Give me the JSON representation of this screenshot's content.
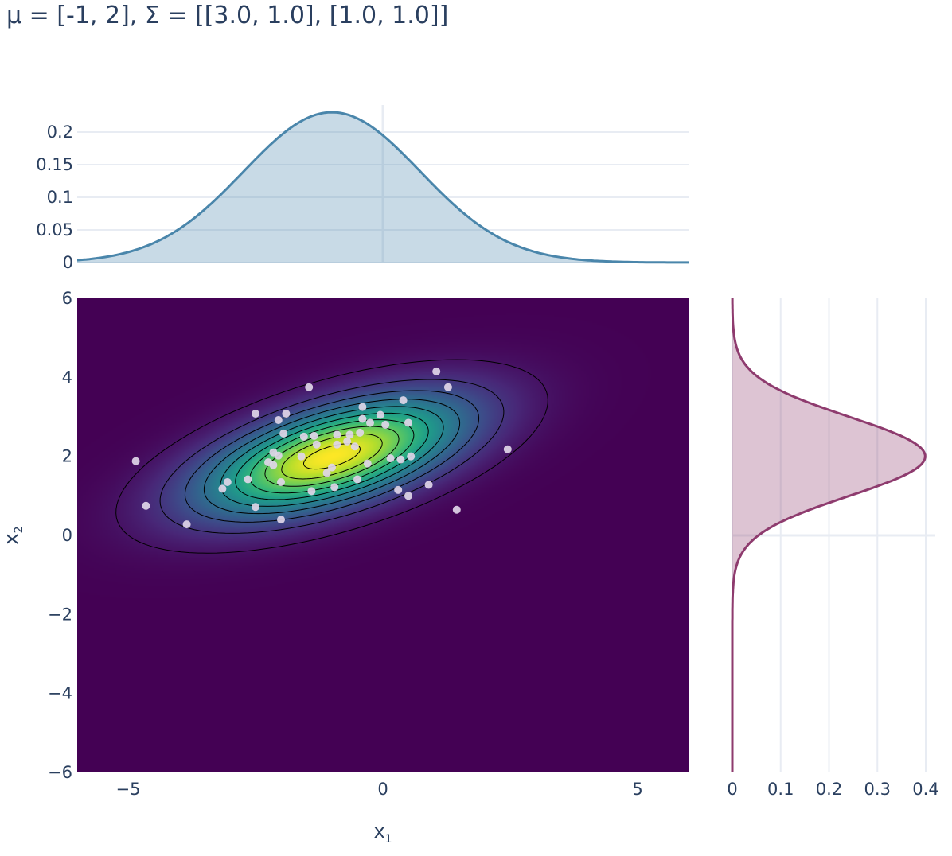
{
  "title": "μ = [-1, 2], Σ = [[3.0, 1.0], [1.0, 1.0]]",
  "colors": {
    "top_marginal": "#4a86ab",
    "right_marginal": "#8e3b6e",
    "scatter": "#e0d6e8",
    "contour": "#000000",
    "grid": "#e8ecf3",
    "text": "#2a3f5f"
  },
  "chart_data": [
    {
      "panel": "joint",
      "type": "heatmap",
      "mean": [
        -1,
        2
      ],
      "covariance": [
        [
          3.0,
          1.0
        ],
        [
          1.0,
          1.0
        ]
      ],
      "colorscale": "Viridis",
      "xlim": [
        -6,
        6
      ],
      "ylim": [
        -6,
        6
      ],
      "xlabel": "x₁",
      "ylabel": "x₂",
      "x_ticks": [
        -5,
        0,
        5
      ],
      "x_tick_labels": [
        "−5",
        "0",
        "5"
      ],
      "y_ticks": [
        -6,
        -4,
        -2,
        0,
        2,
        4,
        6
      ],
      "y_tick_labels": [
        "−6",
        "−4",
        "−2",
        "0",
        "2",
        "4",
        "6"
      ],
      "contour_levels": 10,
      "scatter_points": [
        [
          1.05,
          4.15
        ],
        [
          1.28,
          3.75
        ],
        [
          -1.45,
          3.75
        ],
        [
          -2.5,
          3.08
        ],
        [
          -1.9,
          3.08
        ],
        [
          -2.05,
          2.92
        ],
        [
          -0.4,
          3.25
        ],
        [
          0.4,
          3.42
        ],
        [
          -0.05,
          3.05
        ],
        [
          -0.4,
          2.95
        ],
        [
          0.5,
          2.85
        ],
        [
          -0.25,
          2.85
        ],
        [
          0.05,
          2.8
        ],
        [
          -1.95,
          2.58
        ],
        [
          -1.55,
          2.5
        ],
        [
          -1.35,
          2.52
        ],
        [
          -0.9,
          2.55
        ],
        [
          -0.65,
          2.55
        ],
        [
          -0.45,
          2.6
        ],
        [
          -0.7,
          2.38
        ],
        [
          -0.55,
          2.25
        ],
        [
          -0.9,
          2.3
        ],
        [
          -1.3,
          2.3
        ],
        [
          -2.15,
          2.1
        ],
        [
          -2.05,
          2.02
        ],
        [
          -1.6,
          2.0
        ],
        [
          -2.25,
          1.85
        ],
        [
          -2.15,
          1.78
        ],
        [
          0.55,
          2.0
        ],
        [
          0.35,
          1.92
        ],
        [
          0.15,
          1.95
        ],
        [
          -0.3,
          1.82
        ],
        [
          -1.0,
          1.72
        ],
        [
          -1.1,
          1.58
        ],
        [
          -0.5,
          1.42
        ],
        [
          -2.65,
          1.42
        ],
        [
          -2.0,
          1.35
        ],
        [
          -3.05,
          1.35
        ],
        [
          -3.15,
          1.18
        ],
        [
          -1.4,
          1.12
        ],
        [
          -0.95,
          1.22
        ],
        [
          0.3,
          1.15
        ],
        [
          0.9,
          1.28
        ],
        [
          2.45,
          2.18
        ],
        [
          -4.85,
          1.88
        ],
        [
          -4.65,
          0.75
        ],
        [
          -2.5,
          0.72
        ],
        [
          0.5,
          1.0
        ],
        [
          1.45,
          0.65
        ],
        [
          -2.0,
          0.4
        ],
        [
          -3.85,
          0.28
        ]
      ]
    },
    {
      "panel": "top-marginal",
      "type": "area",
      "distribution": "normal",
      "mean": -1,
      "variance": 3.0,
      "xlim": [
        -6,
        6
      ],
      "ylim": [
        0,
        0.23
      ],
      "y_ticks": [
        0,
        0.05,
        0.1,
        0.15,
        0.2
      ],
      "y_tick_labels": [
        "0",
        "0.05",
        "0.1",
        "0.15",
        "0.2"
      ]
    },
    {
      "panel": "right-marginal",
      "type": "area",
      "distribution": "normal",
      "mean": 2,
      "variance": 1.0,
      "xlim": [
        0,
        0.42
      ],
      "ylim": [
        -6,
        6
      ],
      "x_ticks": [
        0,
        0.1,
        0.2,
        0.3,
        0.4
      ],
      "x_tick_labels": [
        "0",
        "0.1",
        "0.2",
        "0.3",
        "0.4"
      ]
    }
  ]
}
